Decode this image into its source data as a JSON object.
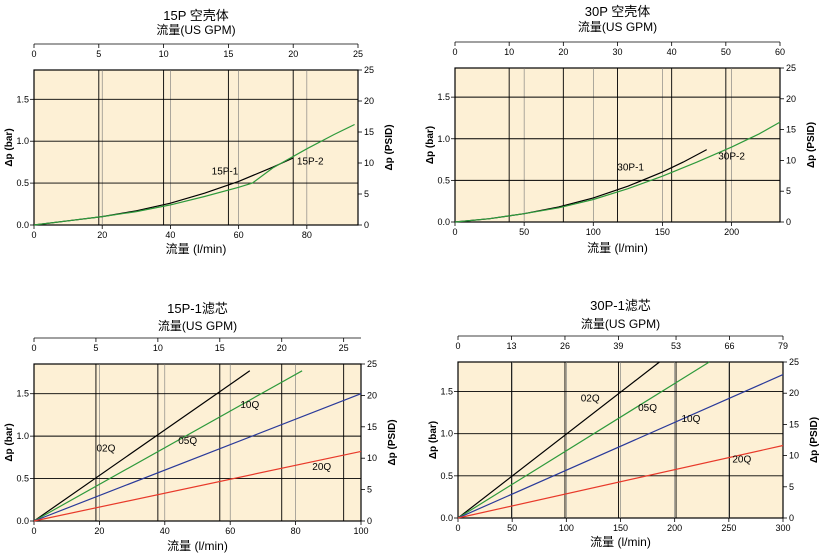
{
  "chart_data": [
    {
      "type": "line",
      "title": "15P 空壳体",
      "top_label": "流量(US GPM)",
      "bottom_label": "流量 (l/min)",
      "left_label": "Δp (bar)",
      "right_label": "Δp (PSID)",
      "x_bottom": {
        "min": 0,
        "max": 95,
        "ticks": [
          0,
          20,
          40,
          60,
          80
        ]
      },
      "x_top": {
        "min": 0,
        "max": 25,
        "ticks": [
          0,
          5,
          10,
          15,
          20,
          25
        ]
      },
      "y_left": {
        "min": 0,
        "max": 1.85,
        "ticks": [
          0.0,
          0.5,
          1.0,
          1.5
        ]
      },
      "y_right": {
        "min": 0,
        "max": 25,
        "ticks": [
          0,
          5,
          10,
          15,
          20,
          25
        ]
      },
      "series": [
        {
          "name": "15P-1",
          "color": "#000000",
          "x": [
            0,
            10,
            20,
            30,
            40,
            50,
            60,
            70,
            76
          ],
          "y": [
            0,
            0.05,
            0.1,
            0.17,
            0.26,
            0.38,
            0.52,
            0.69,
            0.8
          ]
        },
        {
          "name": "15P-2",
          "color": "#2e9a3c",
          "x": [
            0,
            10,
            20,
            30,
            40,
            50,
            60,
            64,
            70,
            80,
            88,
            94
          ],
          "y": [
            0,
            0.05,
            0.1,
            0.16,
            0.24,
            0.34,
            0.45,
            0.5,
            0.68,
            0.91,
            1.08,
            1.2
          ]
        }
      ],
      "label_pos": [
        {
          "x": 56,
          "y": 0.6
        },
        {
          "x": 81,
          "y": 0.72
        }
      ]
    },
    {
      "type": "line",
      "title": "30P 空壳体",
      "top_label": "流量(US GPM)",
      "bottom_label": "流量 (l/min)",
      "left_label": "Δp (bar)",
      "right_label": "Δp (PSID)",
      "x_bottom": {
        "min": 0,
        "max": 235,
        "ticks": [
          0,
          50,
          100,
          150,
          200
        ]
      },
      "x_top": {
        "min": 0,
        "max": 60,
        "ticks": [
          0,
          10,
          20,
          30,
          40,
          50,
          60
        ]
      },
      "y_left": {
        "min": 0,
        "max": 1.85,
        "ticks": [
          0.0,
          0.5,
          1.0,
          1.5
        ]
      },
      "y_right": {
        "min": 0,
        "max": 25,
        "ticks": [
          0,
          5,
          10,
          15,
          20,
          25
        ]
      },
      "series": [
        {
          "name": "30P-1",
          "color": "#000000",
          "x": [
            0,
            25,
            50,
            75,
            100,
            125,
            150,
            165,
            182
          ],
          "y": [
            0,
            0.04,
            0.1,
            0.18,
            0.29,
            0.43,
            0.6,
            0.72,
            0.87
          ]
        },
        {
          "name": "30P-2",
          "color": "#2e9a3c",
          "x": [
            0,
            25,
            50,
            75,
            100,
            125,
            150,
            175,
            200,
            220,
            235
          ],
          "y": [
            0,
            0.04,
            0.1,
            0.17,
            0.27,
            0.4,
            0.55,
            0.72,
            0.9,
            1.06,
            1.2
          ]
        }
      ],
      "label_pos": [
        {
          "x": 127,
          "y": 0.62
        },
        {
          "x": 200,
          "y": 0.75
        }
      ]
    },
    {
      "type": "line",
      "title": "15P-1滤芯",
      "top_label": "流量(US GPM)",
      "bottom_label": "流量 (l/min)",
      "left_label": "Δp (bar)",
      "right_label": "Δp (PSID)",
      "x_bottom": {
        "min": 0,
        "max": 100,
        "ticks": [
          0,
          20,
          40,
          60,
          80,
          100
        ]
      },
      "x_top": {
        "min": 0,
        "max": 26.4,
        "ticks": [
          0,
          5,
          10,
          15,
          20,
          25
        ]
      },
      "y_left": {
        "min": 0,
        "max": 1.85,
        "ticks": [
          0.0,
          0.5,
          1.0,
          1.5
        ]
      },
      "y_right": {
        "min": 0,
        "max": 25,
        "ticks": [
          0,
          5,
          10,
          15,
          20,
          25
        ]
      },
      "series": [
        {
          "name": "02Q",
          "color": "#000000",
          "x": [
            0,
            66
          ],
          "y": [
            0,
            1.77
          ]
        },
        {
          "name": "05Q",
          "color": "#2e9a3c",
          "x": [
            0,
            82
          ],
          "y": [
            0,
            1.77
          ]
        },
        {
          "name": "10Q",
          "color": "#2a3a9a",
          "x": [
            0,
            100
          ],
          "y": [
            0,
            1.5
          ]
        },
        {
          "name": "20Q",
          "color": "#e8392a",
          "x": [
            0,
            100
          ],
          "y": [
            0,
            0.82
          ]
        }
      ],
      "label_pos": [
        {
          "x": 22,
          "y": 0.82
        },
        {
          "x": 47,
          "y": 0.91
        },
        {
          "x": 66,
          "y": 1.33
        },
        {
          "x": 88,
          "y": 0.6
        }
      ]
    },
    {
      "type": "line",
      "title": "30P-1滤芯",
      "top_label": "流量(US GPM)",
      "bottom_label": "流量 (l/min)",
      "left_label": "Δp (bar)",
      "right_label": "Δp (PSID)",
      "x_bottom": {
        "min": 0,
        "max": 300,
        "ticks": [
          0,
          50,
          100,
          150,
          200,
          250,
          300
        ]
      },
      "x_top": {
        "min": 0,
        "max": 79,
        "ticks": [
          0,
          13,
          26,
          39,
          53,
          66,
          79
        ]
      },
      "y_left": {
        "min": 0,
        "max": 1.85,
        "ticks": [
          0.0,
          0.5,
          1.0,
          1.5
        ]
      },
      "y_right": {
        "min": 0,
        "max": 25,
        "ticks": [
          0,
          5,
          10,
          15,
          20,
          25
        ]
      },
      "series": [
        {
          "name": "02Q",
          "color": "#000000",
          "x": [
            0,
            186
          ],
          "y": [
            0,
            1.85
          ]
        },
        {
          "name": "05Q",
          "color": "#2e9a3c",
          "x": [
            0,
            232
          ],
          "y": [
            0,
            1.85
          ]
        },
        {
          "name": "10Q",
          "color": "#2a3a9a",
          "x": [
            0,
            300
          ],
          "y": [
            0,
            1.7
          ]
        },
        {
          "name": "20Q",
          "color": "#e8392a",
          "x": [
            0,
            300
          ],
          "y": [
            0,
            0.86
          ]
        }
      ],
      "label_pos": [
        {
          "x": 122,
          "y": 1.38
        },
        {
          "x": 175,
          "y": 1.27
        },
        {
          "x": 215,
          "y": 1.14
        },
        {
          "x": 262,
          "y": 0.66
        }
      ]
    }
  ]
}
